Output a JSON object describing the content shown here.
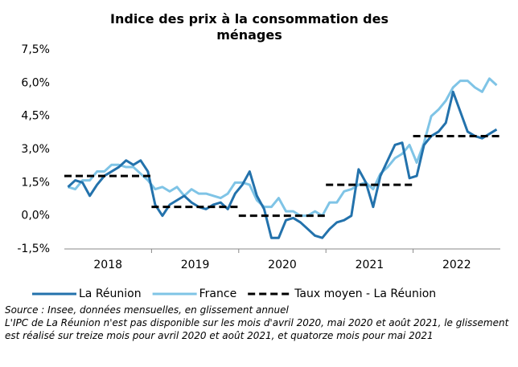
{
  "chart_data": {
    "type": "line",
    "title": "Indice des prix à la consommation des ménages",
    "categories": [
      null,
      null,
      null,
      null,
      null,
      "2018",
      null,
      null,
      null,
      null,
      null,
      null,
      null,
      null,
      null,
      null,
      null,
      "2019",
      null,
      null,
      null,
      null,
      null,
      null,
      null,
      null,
      null,
      null,
      null,
      "2020",
      null,
      null,
      null,
      null,
      null,
      null,
      null,
      null,
      null,
      null,
      null,
      "2021",
      null,
      null,
      null,
      null,
      null,
      null,
      null,
      null,
      null,
      null,
      null,
      "2022",
      null,
      null,
      null,
      null,
      null,
      null
    ],
    "series": [
      {
        "name": "La Réunion",
        "color": "#2372ac",
        "style": "solid",
        "values": [
          1.3,
          1.6,
          1.5,
          0.9,
          1.4,
          1.8,
          2.0,
          2.2,
          2.5,
          2.3,
          2.5,
          2.0,
          0.5,
          0.0,
          0.5,
          0.7,
          0.9,
          0.6,
          0.4,
          0.3,
          0.5,
          0.6,
          0.3,
          1.0,
          1.4,
          2.0,
          0.9,
          0.3,
          -1.0,
          -1.0,
          -0.2,
          -0.1,
          -0.3,
          -0.6,
          -0.9,
          -1.0,
          -0.6,
          -0.3,
          -0.2,
          0.0,
          2.1,
          1.5,
          0.4,
          1.8,
          2.5,
          3.2,
          3.3,
          1.7,
          1.8,
          3.2,
          3.6,
          3.8,
          4.2,
          5.6,
          4.7,
          3.8,
          3.6,
          3.5,
          3.7,
          3.9
        ]
      },
      {
        "name": "France",
        "color": "#7fc4e6",
        "style": "solid",
        "values": [
          1.3,
          1.2,
          1.6,
          1.6,
          2.0,
          2.0,
          2.3,
          2.3,
          2.2,
          2.2,
          1.9,
          1.6,
          1.2,
          1.3,
          1.1,
          1.3,
          0.9,
          1.2,
          1.0,
          1.0,
          0.9,
          0.8,
          1.0,
          1.5,
          1.5,
          1.4,
          0.7,
          0.4,
          0.4,
          0.8,
          0.2,
          0.2,
          0.0,
          0.0,
          0.2,
          0.0,
          0.6,
          0.6,
          1.1,
          1.2,
          1.4,
          1.5,
          1.2,
          1.9,
          2.2,
          2.6,
          2.8,
          3.2,
          2.4,
          3.3,
          4.5,
          4.8,
          5.2,
          5.8,
          6.1,
          6.1,
          5.8,
          5.6,
          6.2,
          5.9
        ]
      },
      {
        "name": "Taux moyen - La Réunion",
        "color": "#000000",
        "style": "dashed",
        "values": [
          1.8,
          1.8,
          1.8,
          1.8,
          1.8,
          1.8,
          1.8,
          1.8,
          1.8,
          1.8,
          1.8,
          1.8,
          0.4,
          0.4,
          0.4,
          0.4,
          0.4,
          0.4,
          0.4,
          0.4,
          0.4,
          0.4,
          0.4,
          0.4,
          0.0,
          0.0,
          0.0,
          0.0,
          0.0,
          0.0,
          0.0,
          0.0,
          0.0,
          0.0,
          0.0,
          0.0,
          1.4,
          1.4,
          1.4,
          1.4,
          1.4,
          1.4,
          1.4,
          1.4,
          1.4,
          1.4,
          1.4,
          1.4,
          3.6,
          3.6,
          3.6,
          3.6,
          3.6,
          3.6,
          3.6,
          3.6,
          3.6,
          3.6,
          3.6,
          3.6
        ]
      }
    ],
    "ylim": [
      -1.5,
      7.5
    ],
    "yticks": [
      {
        "value": -1.5,
        "label": "-1,5%"
      },
      {
        "value": 0,
        "label": "0,0%"
      },
      {
        "value": 1.5,
        "label": "1,5%"
      },
      {
        "value": 3,
        "label": "3,0%"
      },
      {
        "value": 4.5,
        "label": "4,5%"
      },
      {
        "value": 6,
        "label": "6,0%"
      },
      {
        "value": 7.5,
        "label": "7,5%"
      }
    ],
    "grid": false,
    "legend": "bottom",
    "notes": [
      "Source : Insee, données mensuelles, en glissement annuel",
      "L'IPC de La Réunion n'est pas disponible sur les mois d'avril 2020, mai 2020 et août 2021, le glissement est réalisé sur treize mois pour avril 2020 et août 2021, et quatorze mois pour mai 2021"
    ]
  }
}
